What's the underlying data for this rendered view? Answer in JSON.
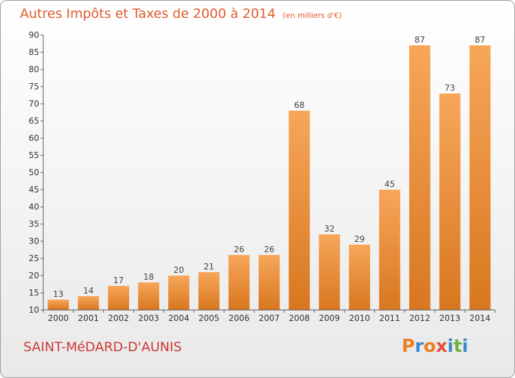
{
  "header": {
    "title": "Autres Impôts et Taxes de 2000 à 2014",
    "unit": "(en milliers d'€)"
  },
  "footer": {
    "commune": "SAINT-MéDARD-D'AUNIS",
    "logo_text": "Proxiti"
  },
  "colors": {
    "title": "#e05b2e",
    "commune": "#cc3a35",
    "bar_light": "#f7a65a",
    "bar_dark": "#d8771f",
    "logo": [
      "#ee7e22",
      "#3b87c8",
      "#ee7e22",
      "#e84a3c",
      "#3b87c8",
      "#6db33f",
      "#3b87c8"
    ]
  },
  "chart_data": {
    "type": "bar",
    "categories": [
      "2000",
      "2001",
      "2002",
      "2003",
      "2004",
      "2005",
      "2006",
      "2007",
      "2008",
      "2009",
      "2010",
      "2011",
      "2012",
      "2013",
      "2014"
    ],
    "values": [
      13,
      14,
      17,
      18,
      20,
      21,
      26,
      26,
      68,
      32,
      29,
      45,
      87,
      73,
      87
    ],
    "ylim": [
      10,
      90
    ],
    "yticks": [
      10,
      15,
      20,
      25,
      30,
      35,
      40,
      45,
      50,
      55,
      60,
      65,
      70,
      75,
      80,
      85,
      90
    ],
    "grid": false,
    "data_labels": true
  }
}
